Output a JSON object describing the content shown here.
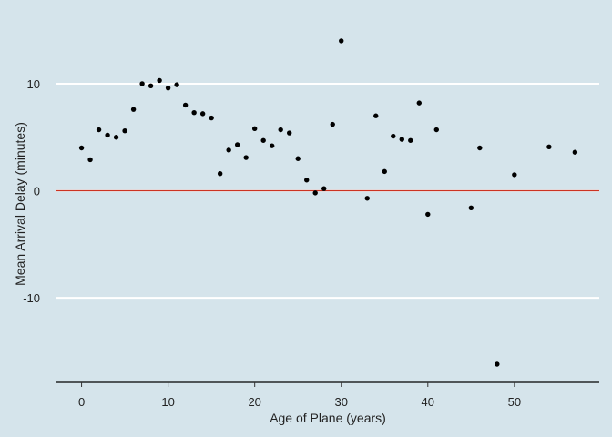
{
  "chart_data": {
    "type": "scatter",
    "xlabel": "Age of Plane (years)",
    "ylabel": "Mean Arrival Delay (minutes)",
    "xlim": [
      -2.9,
      59.8
    ],
    "ylim": [
      -17.9,
      16.8
    ],
    "x_ticks": [
      0,
      10,
      20,
      30,
      40,
      50
    ],
    "y_ticks": [
      -10,
      0,
      10
    ],
    "x_tick_labels": [
      "0",
      "10",
      "20",
      "30",
      "40",
      "50"
    ],
    "y_tick_labels": [
      "-10",
      "0",
      "10"
    ],
    "grid": "horizontal major lines only",
    "reference_line": {
      "y": 0,
      "color": "#cc3322"
    },
    "background_color": "#d5e4eb",
    "point_color": "#000000",
    "points": [
      {
        "x": 0,
        "y": 4.0
      },
      {
        "x": 1,
        "y": 2.9
      },
      {
        "x": 2,
        "y": 5.7
      },
      {
        "x": 3,
        "y": 5.2
      },
      {
        "x": 4,
        "y": 5.0
      },
      {
        "x": 5,
        "y": 5.6
      },
      {
        "x": 6,
        "y": 7.6
      },
      {
        "x": 7,
        "y": 10.0
      },
      {
        "x": 8,
        "y": 9.8
      },
      {
        "x": 9,
        "y": 10.3
      },
      {
        "x": 10,
        "y": 9.6
      },
      {
        "x": 11,
        "y": 9.9
      },
      {
        "x": 12,
        "y": 8.0
      },
      {
        "x": 13,
        "y": 7.3
      },
      {
        "x": 14,
        "y": 7.2
      },
      {
        "x": 15,
        "y": 6.8
      },
      {
        "x": 16,
        "y": 1.6
      },
      {
        "x": 17,
        "y": 3.8
      },
      {
        "x": 18,
        "y": 4.3
      },
      {
        "x": 19,
        "y": 3.1
      },
      {
        "x": 20,
        "y": 5.8
      },
      {
        "x": 21,
        "y": 4.7
      },
      {
        "x": 22,
        "y": 4.2
      },
      {
        "x": 23,
        "y": 5.7
      },
      {
        "x": 24,
        "y": 5.4
      },
      {
        "x": 25,
        "y": 3.0
      },
      {
        "x": 26,
        "y": 1.0
      },
      {
        "x": 27,
        "y": -0.2
      },
      {
        "x": 28,
        "y": 0.2
      },
      {
        "x": 29,
        "y": 6.2
      },
      {
        "x": 30,
        "y": 14.0
      },
      {
        "x": 33,
        "y": -0.7
      },
      {
        "x": 34,
        "y": 7.0
      },
      {
        "x": 35,
        "y": 1.8
      },
      {
        "x": 36,
        "y": 5.1
      },
      {
        "x": 37,
        "y": 4.8
      },
      {
        "x": 38,
        "y": 4.7
      },
      {
        "x": 39,
        "y": 8.2
      },
      {
        "x": 40,
        "y": -2.2
      },
      {
        "x": 41,
        "y": 5.7
      },
      {
        "x": 45,
        "y": -1.6
      },
      {
        "x": 46,
        "y": 4.0
      },
      {
        "x": 48,
        "y": -16.2
      },
      {
        "x": 50,
        "y": 1.5
      },
      {
        "x": 54,
        "y": 4.1
      },
      {
        "x": 57,
        "y": 3.6
      }
    ]
  }
}
